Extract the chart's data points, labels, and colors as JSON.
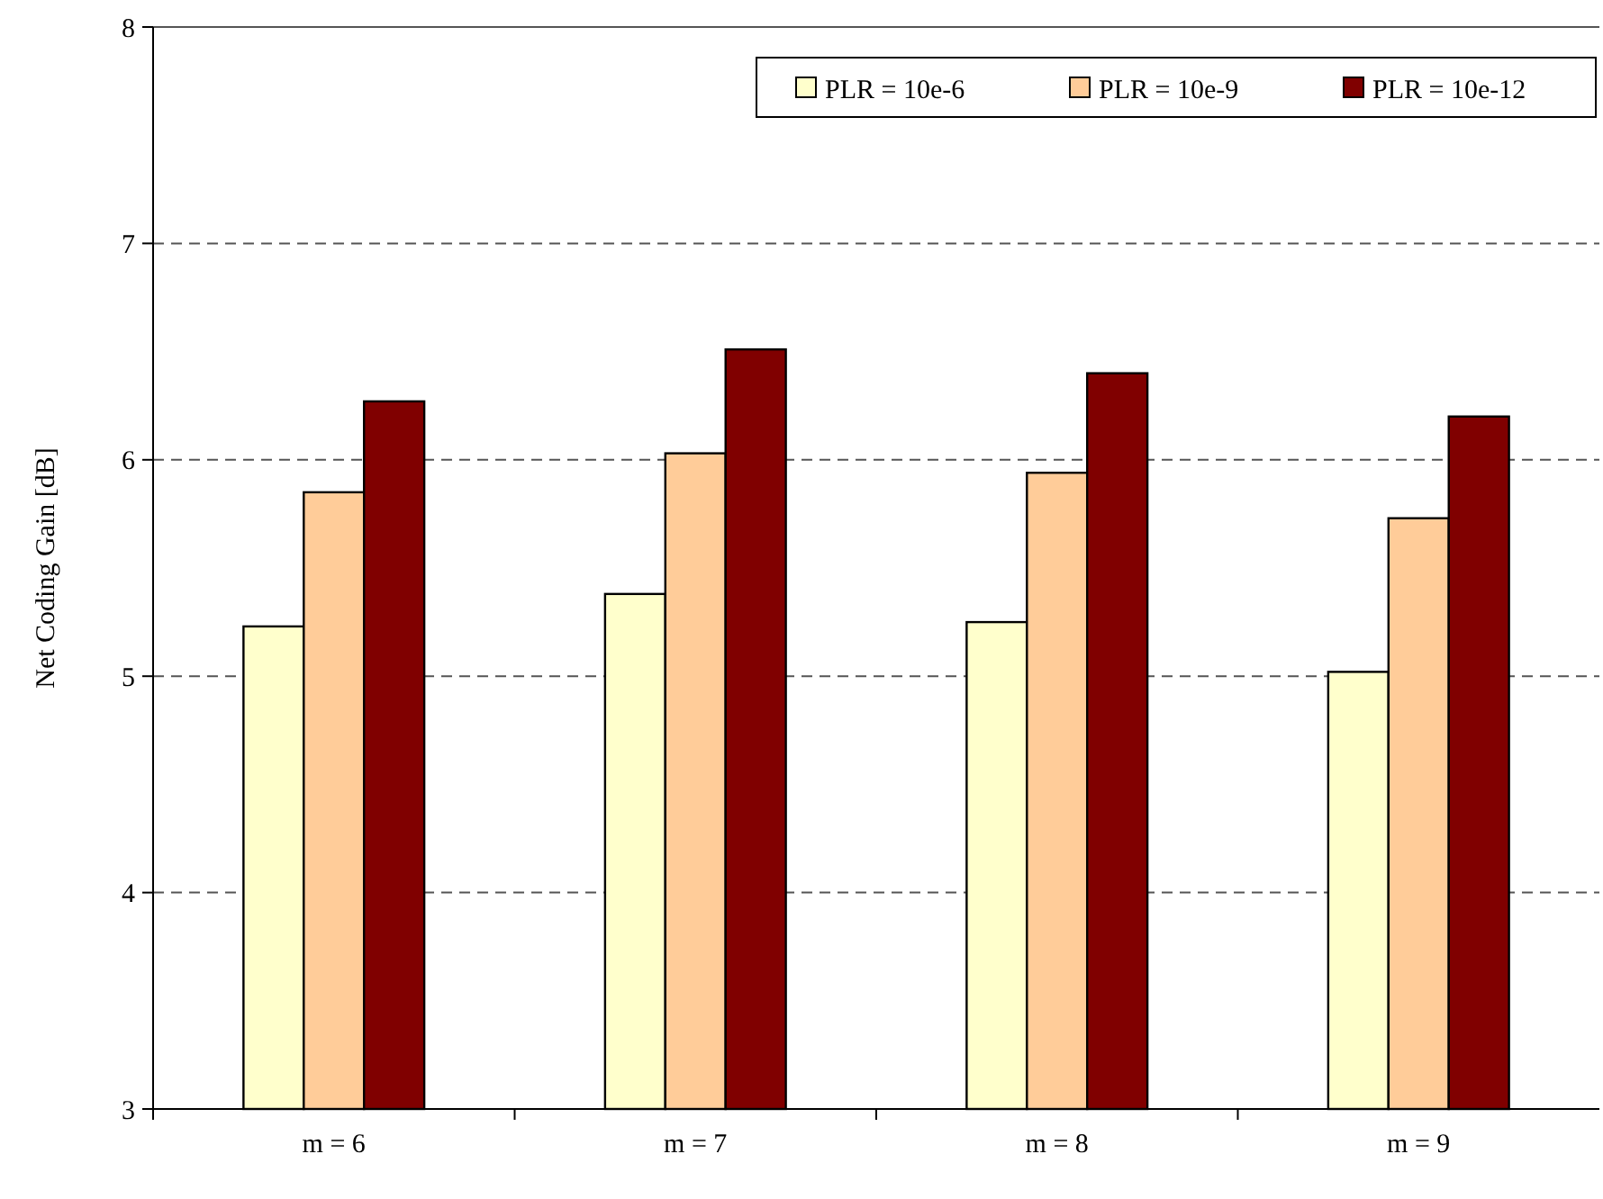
{
  "chart_data": {
    "type": "bar",
    "ylabel": "Net Coding Gain [dB]",
    "categories": [
      "m = 6",
      "m = 7",
      "m = 8",
      "m = 9"
    ],
    "series": [
      {
        "name": "PLR = 10e-6",
        "color": "#ffffcc",
        "values": [
          5.23,
          5.38,
          5.25,
          5.02
        ]
      },
      {
        "name": "PLR = 10e-9",
        "color": "#ffcc99",
        "values": [
          5.85,
          6.03,
          5.94,
          5.73
        ]
      },
      {
        "name": "PLR = 10e-12",
        "color": "#800000",
        "values": [
          6.27,
          6.51,
          6.4,
          6.2
        ]
      }
    ],
    "ylim": [
      3,
      8
    ],
    "yticks": [
      3,
      4,
      5,
      6,
      7,
      8
    ],
    "grid": "y",
    "legend": "top right"
  }
}
